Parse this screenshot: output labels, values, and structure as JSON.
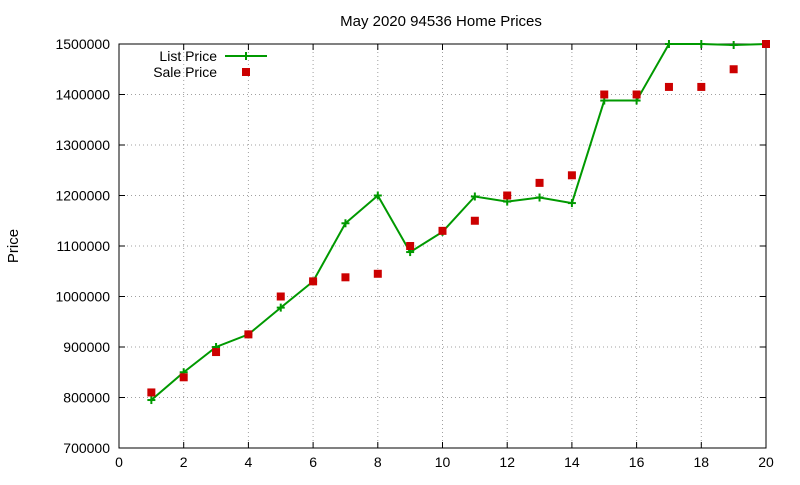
{
  "chart_data": {
    "type": "line",
    "title": "May 2020 94536 Home Prices",
    "xlabel": "",
    "ylabel": "Price",
    "xlim": [
      0,
      20
    ],
    "ylim": [
      700000,
      1500000
    ],
    "xticks": [
      0,
      2,
      4,
      6,
      8,
      10,
      12,
      14,
      16,
      18,
      20
    ],
    "yticks": [
      700000,
      800000,
      900000,
      1000000,
      1100000,
      1200000,
      1300000,
      1400000,
      1500000
    ],
    "grid": true,
    "legend_position": "top-left",
    "series": [
      {
        "name": "List Price",
        "style": "line+points",
        "marker": "plus",
        "color": "#009900",
        "x": [
          1,
          2,
          3,
          4,
          5,
          6,
          7,
          8,
          9,
          10,
          11,
          12,
          13,
          14,
          15,
          16,
          17,
          18,
          19,
          20
        ],
        "values": [
          795000,
          850000,
          900000,
          925000,
          978000,
          1030000,
          1145000,
          1200000,
          1088000,
          1128000,
          1198000,
          1188000,
          1196000,
          1185000,
          1388000,
          1388000,
          1500000,
          1500000,
          1498000,
          1500000
        ]
      },
      {
        "name": "Sale Price",
        "style": "points",
        "marker": "square",
        "color": "#cc0000",
        "x": [
          1,
          2,
          3,
          4,
          5,
          6,
          7,
          8,
          9,
          10,
          11,
          12,
          13,
          14,
          15,
          16,
          17,
          18,
          19,
          20
        ],
        "values": [
          810000,
          840000,
          890000,
          925000,
          1000000,
          1030000,
          1038000,
          1045000,
          1100000,
          1130000,
          1150000,
          1200000,
          1225000,
          1240000,
          1400000,
          1400000,
          1415000,
          1415000,
          1450000,
          1500000
        ]
      }
    ]
  }
}
